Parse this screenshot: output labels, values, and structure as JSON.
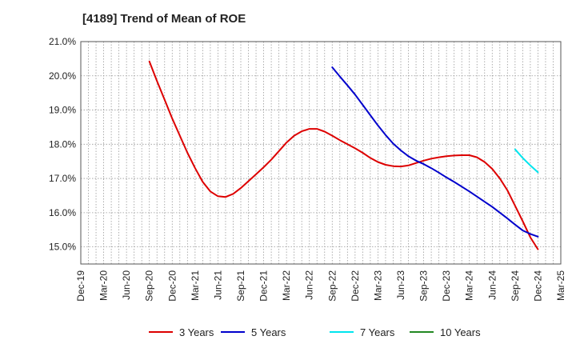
{
  "chart_data": {
    "type": "line",
    "title": "[4189]  Trend of Mean of ROE",
    "xlabel": "",
    "ylabel": "",
    "x_ticks": [
      "Dec-19",
      "Mar-20",
      "Jun-20",
      "Sep-20",
      "Dec-20",
      "Mar-21",
      "Jun-21",
      "Sep-21",
      "Dec-21",
      "Mar-22",
      "Jun-22",
      "Sep-22",
      "Dec-22",
      "Mar-23",
      "Jun-23",
      "Sep-23",
      "Dec-23",
      "Mar-24",
      "Jun-24",
      "Sep-24",
      "Dec-24",
      "Mar-25"
    ],
    "y_ticks": [
      "21.0%",
      "20.0%",
      "19.0%",
      "18.0%",
      "17.0%",
      "16.0%",
      "15.0%"
    ],
    "ylim": [
      14.5,
      21.0
    ],
    "grid": true,
    "legend_position": "bottom",
    "series": [
      {
        "name": "3 Years",
        "color": "#dd0000",
        "x": [
          "Sep-20",
          "Oct-20",
          "Nov-20",
          "Dec-20",
          "Jan-21",
          "Feb-21",
          "Mar-21",
          "Apr-21",
          "May-21",
          "Jun-21",
          "Jul-21",
          "Aug-21",
          "Sep-21",
          "Oct-21",
          "Nov-21",
          "Dec-21",
          "Jan-22",
          "Feb-22",
          "Mar-22",
          "Apr-22",
          "May-22",
          "Jun-22",
          "Jul-22",
          "Aug-22",
          "Sep-22",
          "Oct-22",
          "Nov-22",
          "Dec-22",
          "Jan-23",
          "Feb-23",
          "Mar-23",
          "Apr-23",
          "May-23",
          "Jun-23",
          "Jul-23",
          "Aug-23",
          "Sep-23",
          "Oct-23",
          "Nov-23",
          "Dec-23",
          "Jan-24",
          "Feb-24",
          "Mar-24",
          "Apr-24",
          "May-24",
          "Jun-24",
          "Jul-24",
          "Aug-24",
          "Sep-24",
          "Oct-24",
          "Nov-24",
          "Dec-24"
        ],
        "values": [
          20.42,
          19.85,
          19.3,
          18.75,
          18.25,
          17.75,
          17.3,
          16.9,
          16.62,
          16.48,
          16.46,
          16.55,
          16.72,
          16.92,
          17.12,
          17.33,
          17.55,
          17.8,
          18.05,
          18.25,
          18.38,
          18.45,
          18.45,
          18.37,
          18.25,
          18.12,
          18.0,
          17.88,
          17.75,
          17.6,
          17.48,
          17.4,
          17.36,
          17.35,
          17.38,
          17.45,
          17.52,
          17.58,
          17.62,
          17.65,
          17.67,
          17.68,
          17.68,
          17.62,
          17.48,
          17.28,
          17.0,
          16.65,
          16.2,
          15.75,
          15.28,
          14.93
        ]
      },
      {
        "name": "5 Years",
        "color": "#0000cc",
        "x": [
          "Sep-22",
          "Oct-22",
          "Nov-22",
          "Dec-22",
          "Jan-23",
          "Feb-23",
          "Mar-23",
          "Apr-23",
          "May-23",
          "Jun-23",
          "Jul-23",
          "Aug-23",
          "Sep-23",
          "Oct-23",
          "Nov-23",
          "Dec-23",
          "Jan-24",
          "Feb-24",
          "Mar-24",
          "Apr-24",
          "May-24",
          "Jun-24",
          "Jul-24",
          "Aug-24",
          "Sep-24",
          "Oct-24",
          "Nov-24",
          "Dec-24"
        ],
        "values": [
          20.25,
          19.98,
          19.72,
          19.45,
          19.15,
          18.85,
          18.55,
          18.27,
          18.02,
          17.82,
          17.65,
          17.52,
          17.42,
          17.3,
          17.17,
          17.03,
          16.9,
          16.76,
          16.62,
          16.47,
          16.32,
          16.17,
          16.0,
          15.83,
          15.65,
          15.48,
          15.38,
          15.3
        ]
      },
      {
        "name": "7 Years",
        "color": "#00e5ee",
        "x": [
          "Sep-24",
          "Oct-24",
          "Nov-24",
          "Dec-24"
        ],
        "values": [
          17.85,
          17.6,
          17.38,
          17.18
        ]
      },
      {
        "name": "10 Years",
        "color": "#228822",
        "x": [],
        "values": []
      }
    ]
  }
}
